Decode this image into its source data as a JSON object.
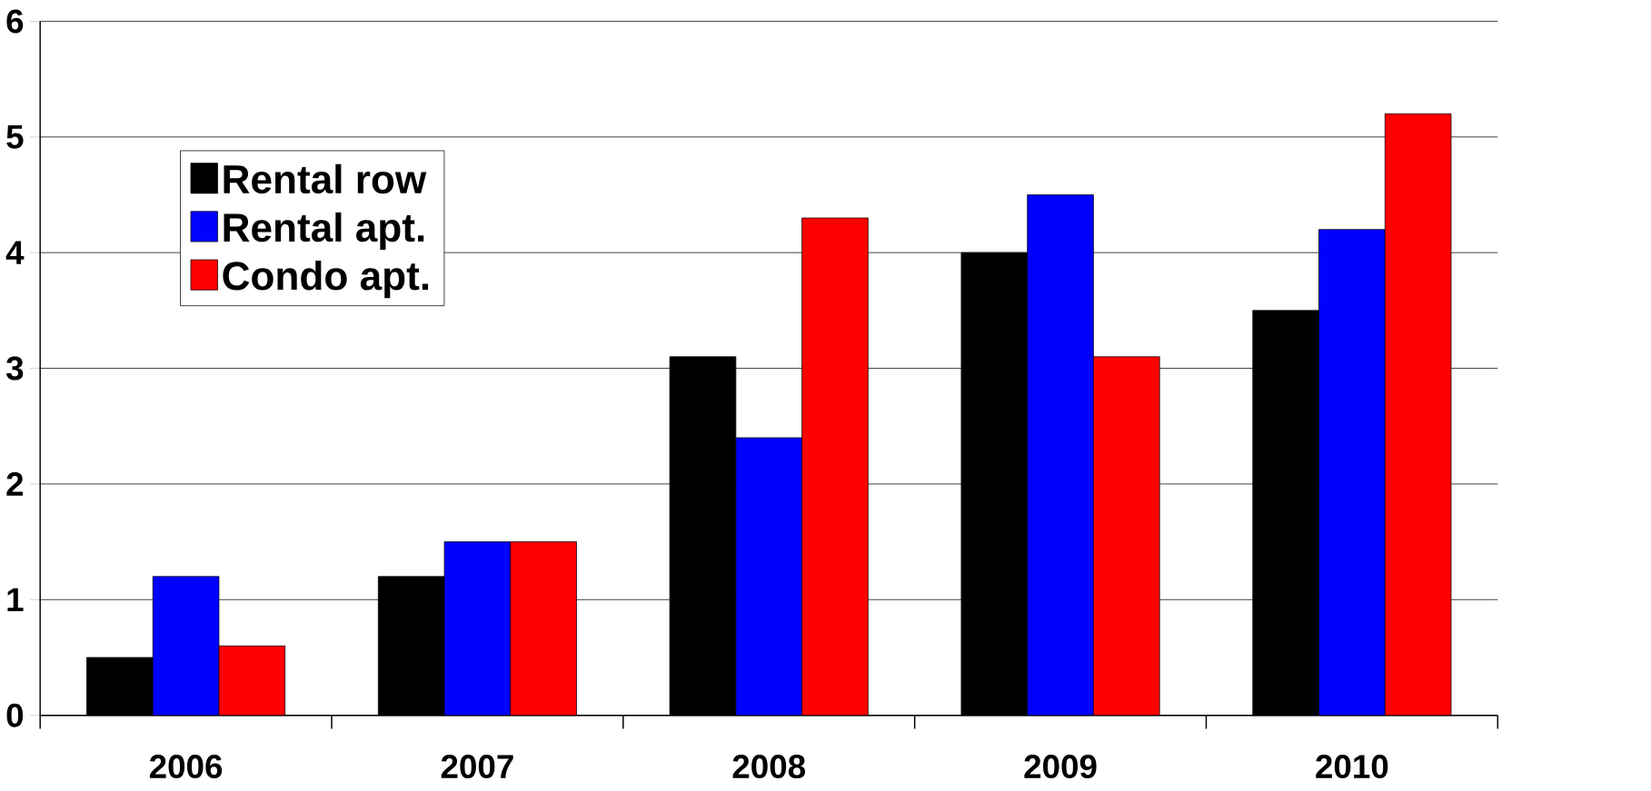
{
  "chart_data": {
    "type": "bar",
    "categories": [
      "2006",
      "2007",
      "2008",
      "2009",
      "2010"
    ],
    "series": [
      {
        "name": "Rental row",
        "color": "#000000",
        "values": [
          0.5,
          1.2,
          3.1,
          4.0,
          3.5
        ]
      },
      {
        "name": "Rental apt.",
        "color": "#0000ff",
        "values": [
          1.2,
          1.5,
          2.4,
          4.5,
          4.2
        ]
      },
      {
        "name": "Condo apt.",
        "color": "#ff0000",
        "values": [
          0.6,
          1.5,
          4.3,
          3.1,
          5.2
        ]
      }
    ],
    "ylim": [
      0,
      6
    ],
    "yticks": [
      0,
      1,
      2,
      3,
      4,
      5,
      6
    ],
    "grid": "y",
    "legend": "top left"
  }
}
